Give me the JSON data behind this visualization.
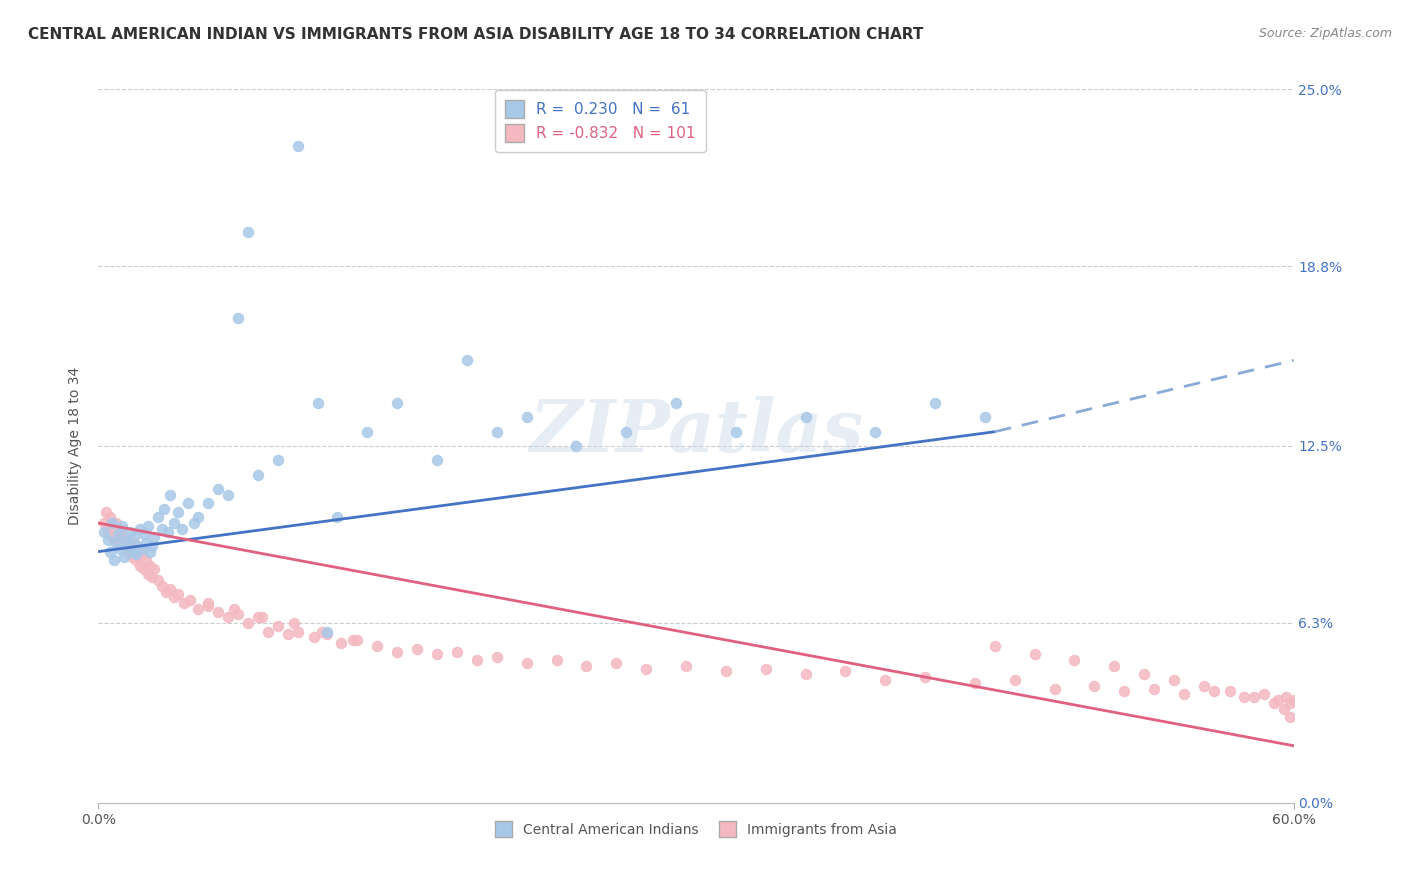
{
  "title": "CENTRAL AMERICAN INDIAN VS IMMIGRANTS FROM ASIA DISABILITY AGE 18 TO 34 CORRELATION CHART",
  "source": "Source: ZipAtlas.com",
  "ylabel": "Disability Age 18 to 34",
  "xmin": 0.0,
  "xmax": 0.6,
  "ymin": 0.0,
  "ymax": 0.25,
  "ytick_vals": [
    0.0,
    0.063,
    0.125,
    0.188,
    0.25
  ],
  "ytick_labels": [
    "0.0%",
    "6.3%",
    "12.5%",
    "18.8%",
    "25.0%"
  ],
  "xtick_vals": [
    0.0,
    0.6
  ],
  "xtick_labels": [
    "0.0%",
    "60.0%"
  ],
  "legend1_label": "R =  0.230   N =  61",
  "legend2_label": "R = -0.832   N = 101",
  "scatter1_color": "#a8c8e8",
  "scatter2_color": "#f4b8c0",
  "line1_color": "#4472c4",
  "line2_color": "#e06080",
  "line1_dash_color": "#8aaad8",
  "watermark": "ZIPatlas",
  "background_color": "#ffffff",
  "grid_color": "#cccccc",
  "title_color": "#333333",
  "right_tick_color": "#4472c4",
  "title_fontsize": 11,
  "label_fontsize": 10,
  "tick_fontsize": 10,
  "blue_line_solid_end": 0.45,
  "scatter1_x": [
    0.003,
    0.005,
    0.006,
    0.007,
    0.008,
    0.009,
    0.01,
    0.011,
    0.012,
    0.013,
    0.014,
    0.015,
    0.016,
    0.017,
    0.018,
    0.019,
    0.02,
    0.021,
    0.022,
    0.023,
    0.024,
    0.025,
    0.026,
    0.027,
    0.028,
    0.03,
    0.032,
    0.033,
    0.035,
    0.036,
    0.038,
    0.04,
    0.042,
    0.045,
    0.048,
    0.05,
    0.055,
    0.06,
    0.065,
    0.07,
    0.075,
    0.08,
    0.09,
    0.1,
    0.11,
    0.115,
    0.12,
    0.135,
    0.15,
    0.17,
    0.185,
    0.2,
    0.215,
    0.24,
    0.265,
    0.29,
    0.32,
    0.355,
    0.39,
    0.42,
    0.445
  ],
  "scatter1_y": [
    0.095,
    0.092,
    0.088,
    0.098,
    0.085,
    0.091,
    0.094,
    0.089,
    0.097,
    0.086,
    0.092,
    0.09,
    0.095,
    0.088,
    0.093,
    0.087,
    0.09,
    0.096,
    0.089,
    0.094,
    0.091,
    0.097,
    0.088,
    0.09,
    0.093,
    0.1,
    0.096,
    0.103,
    0.095,
    0.108,
    0.098,
    0.102,
    0.096,
    0.105,
    0.098,
    0.1,
    0.105,
    0.11,
    0.108,
    0.17,
    0.2,
    0.115,
    0.12,
    0.23,
    0.14,
    0.06,
    0.1,
    0.13,
    0.14,
    0.12,
    0.155,
    0.13,
    0.135,
    0.125,
    0.13,
    0.14,
    0.13,
    0.135,
    0.13,
    0.14,
    0.135
  ],
  "scatter2_x": [
    0.003,
    0.004,
    0.005,
    0.006,
    0.007,
    0.008,
    0.009,
    0.01,
    0.011,
    0.012,
    0.013,
    0.014,
    0.015,
    0.016,
    0.017,
    0.018,
    0.019,
    0.02,
    0.021,
    0.022,
    0.023,
    0.024,
    0.025,
    0.026,
    0.027,
    0.028,
    0.03,
    0.032,
    0.034,
    0.036,
    0.038,
    0.04,
    0.043,
    0.046,
    0.05,
    0.055,
    0.06,
    0.065,
    0.07,
    0.075,
    0.08,
    0.085,
    0.09,
    0.095,
    0.1,
    0.108,
    0.115,
    0.122,
    0.13,
    0.14,
    0.15,
    0.16,
    0.17,
    0.18,
    0.19,
    0.2,
    0.215,
    0.23,
    0.245,
    0.26,
    0.275,
    0.295,
    0.315,
    0.335,
    0.355,
    0.375,
    0.395,
    0.415,
    0.44,
    0.46,
    0.48,
    0.5,
    0.515,
    0.53,
    0.545,
    0.56,
    0.575,
    0.585,
    0.592,
    0.596,
    0.598,
    0.6,
    0.45,
    0.47,
    0.49,
    0.51,
    0.525,
    0.54,
    0.555,
    0.568,
    0.58,
    0.59,
    0.595,
    0.598,
    0.055,
    0.068,
    0.082,
    0.098,
    0.112,
    0.128
  ],
  "scatter2_y": [
    0.098,
    0.102,
    0.095,
    0.1,
    0.093,
    0.096,
    0.098,
    0.091,
    0.094,
    0.095,
    0.09,
    0.092,
    0.088,
    0.09,
    0.086,
    0.091,
    0.085,
    0.086,
    0.083,
    0.087,
    0.082,
    0.085,
    0.08,
    0.083,
    0.079,
    0.082,
    0.078,
    0.076,
    0.074,
    0.075,
    0.072,
    0.073,
    0.07,
    0.071,
    0.068,
    0.069,
    0.067,
    0.065,
    0.066,
    0.063,
    0.065,
    0.06,
    0.062,
    0.059,
    0.06,
    0.058,
    0.059,
    0.056,
    0.057,
    0.055,
    0.053,
    0.054,
    0.052,
    0.053,
    0.05,
    0.051,
    0.049,
    0.05,
    0.048,
    0.049,
    0.047,
    0.048,
    0.046,
    0.047,
    0.045,
    0.046,
    0.043,
    0.044,
    0.042,
    0.043,
    0.04,
    0.041,
    0.039,
    0.04,
    0.038,
    0.039,
    0.037,
    0.038,
    0.036,
    0.037,
    0.035,
    0.036,
    0.055,
    0.052,
    0.05,
    0.048,
    0.045,
    0.043,
    0.041,
    0.039,
    0.037,
    0.035,
    0.033,
    0.03,
    0.07,
    0.068,
    0.065,
    0.063,
    0.06,
    0.057
  ],
  "blue_trend_start_x": 0.0,
  "blue_trend_start_y": 0.088,
  "blue_trend_end_solid_x": 0.45,
  "blue_trend_end_solid_y": 0.13,
  "blue_trend_end_dash_x": 0.6,
  "blue_trend_end_dash_y": 0.155,
  "pink_trend_start_x": 0.0,
  "pink_trend_start_y": 0.098,
  "pink_trend_end_x": 0.6,
  "pink_trend_end_y": 0.02
}
